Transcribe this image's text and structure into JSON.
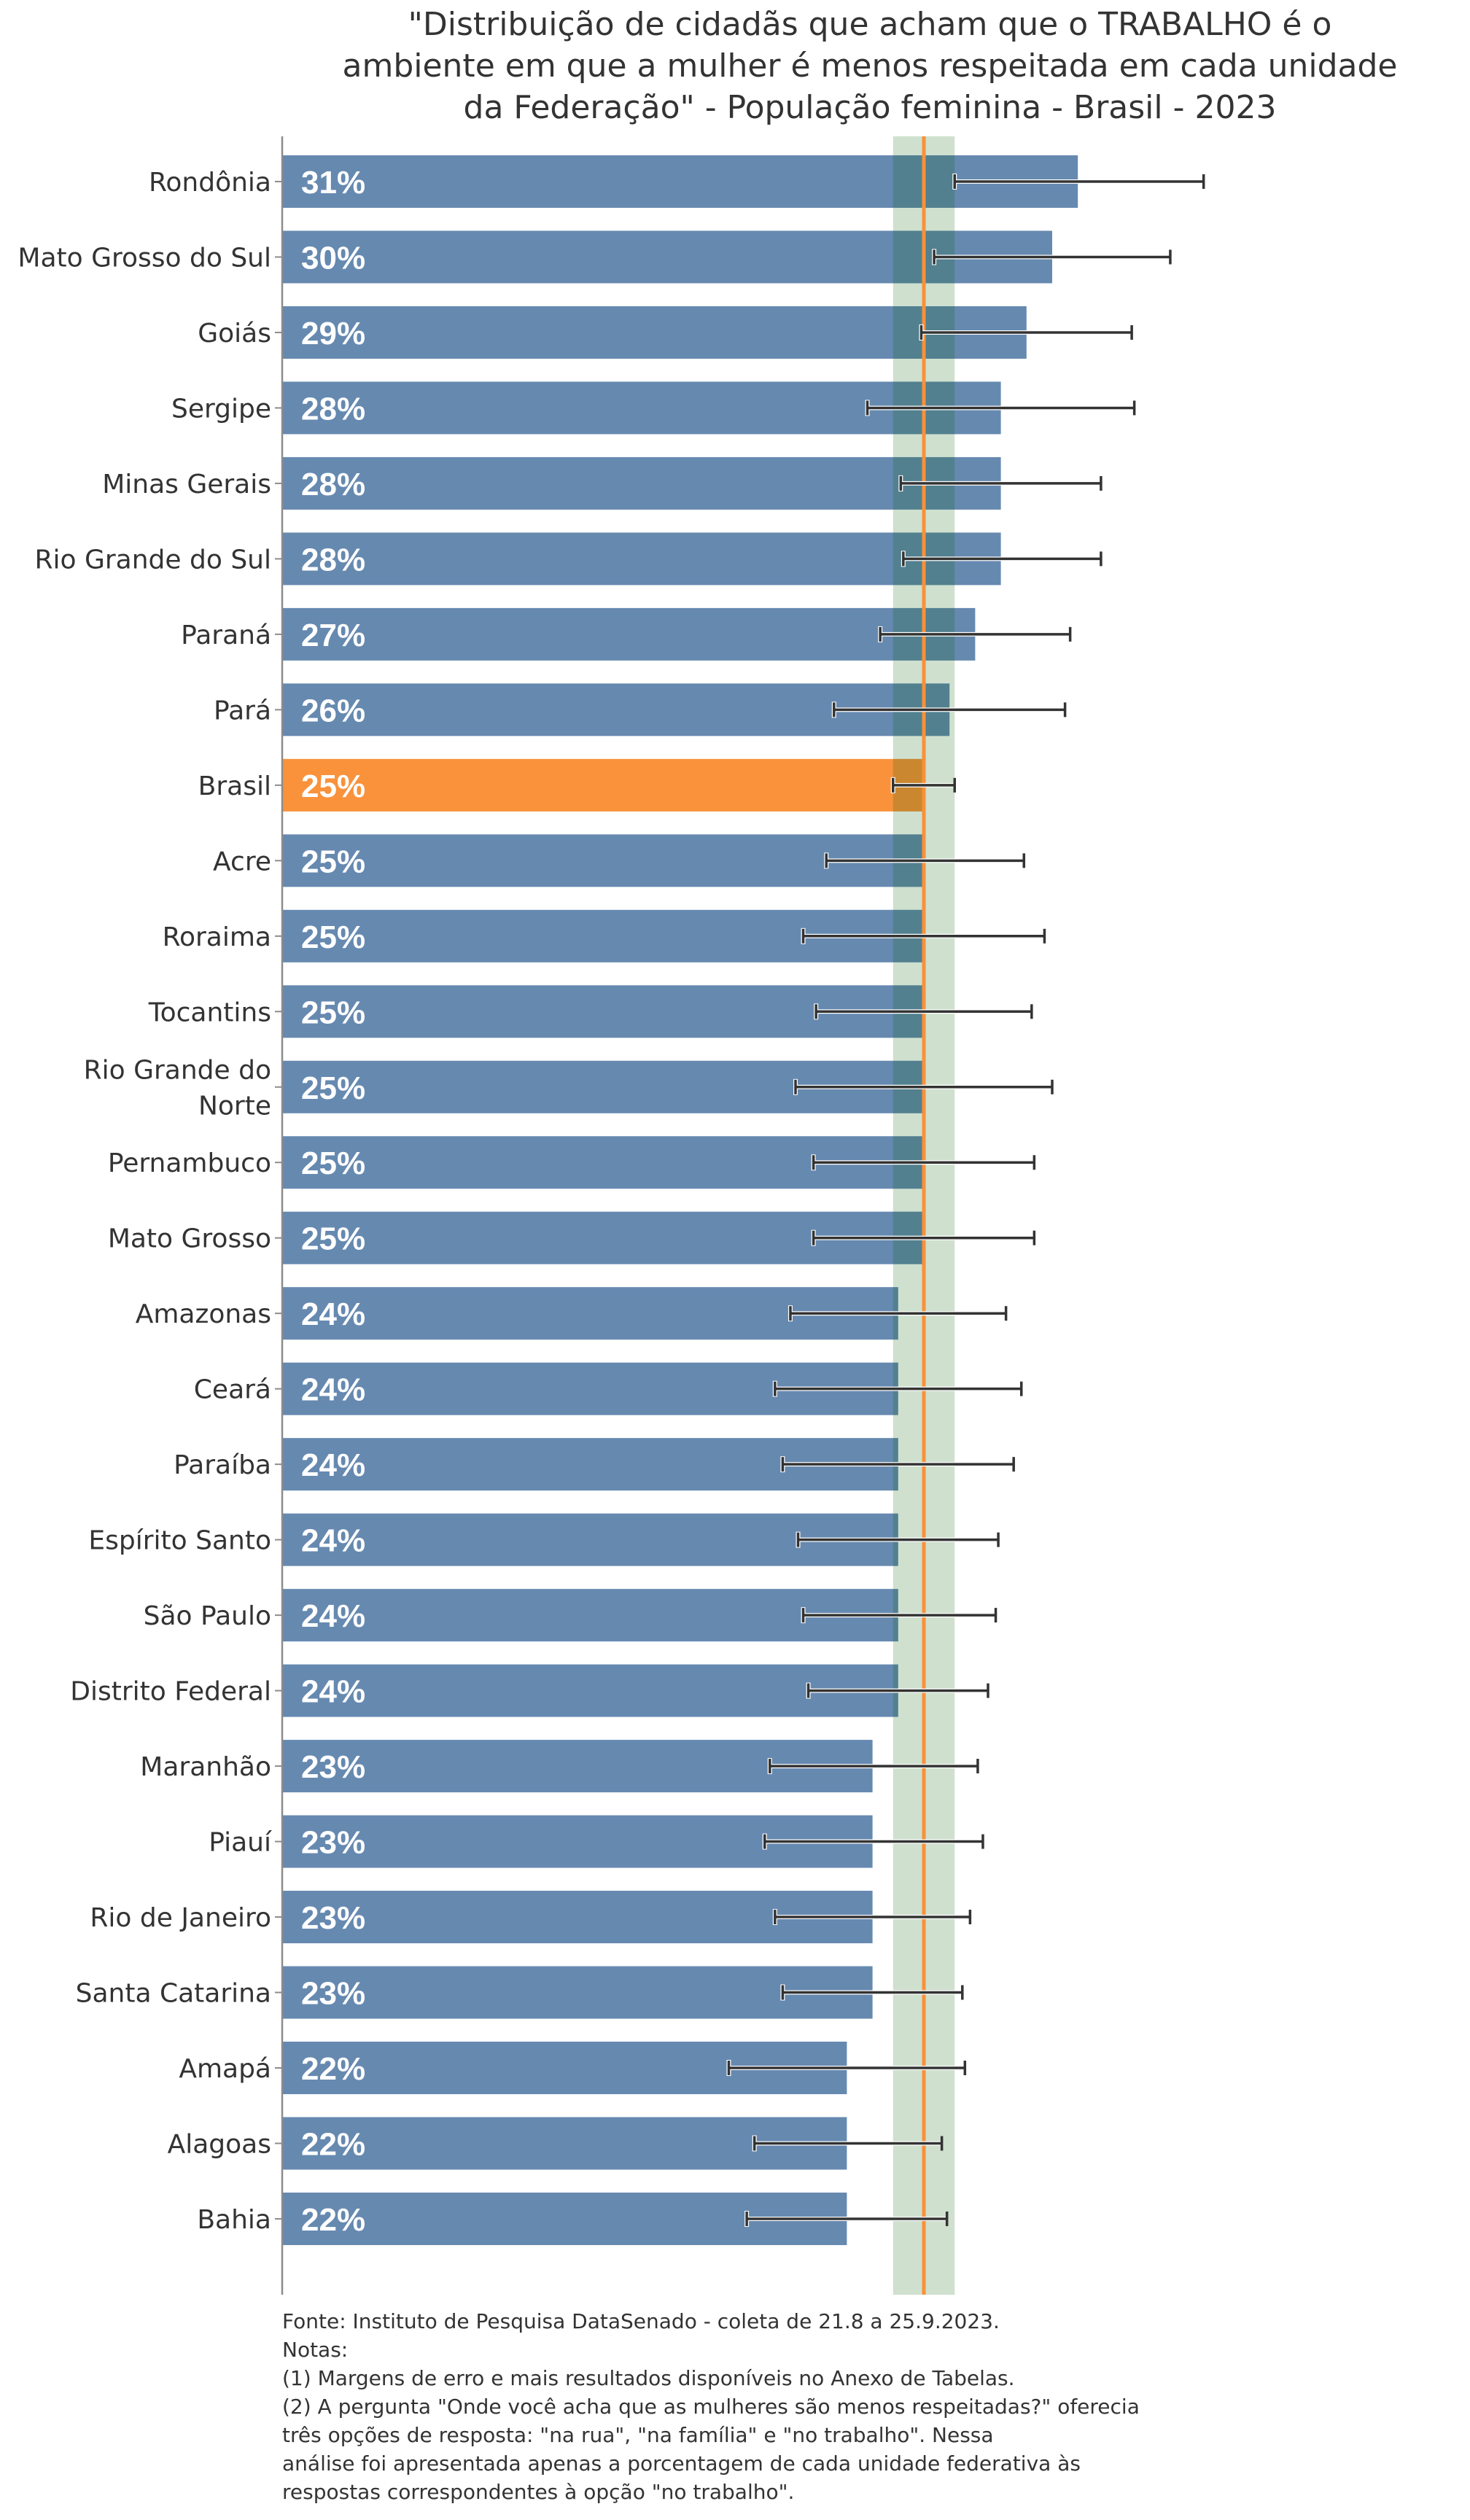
{
  "chart_data": {
    "type": "bar",
    "orientation": "horizontal",
    "title_lines": [
      "\"Distribuição de cidadãs que acham que o TRABALHO é o",
      "ambiente em que a mulher é menos respeitada em cada unidade",
      "da Federação\" - População feminina - Brasil - 2023"
    ],
    "xlabel": "",
    "ylabel": "",
    "xlim": [
      0,
      46
    ],
    "unit": "%",
    "grid": false,
    "legend": null,
    "reference": {
      "label": "Brasil",
      "value": 25,
      "band": [
        23.8,
        26.2
      ]
    },
    "colors": {
      "bar": "#6689B0",
      "highlight_bar": "#F9923B",
      "reference_line": "#F99139",
      "band": "rgba(0,89,0,0.19)",
      "errorbar": "#333333",
      "axis": "#8c8c8c",
      "text": "#333333"
    },
    "categories": [
      {
        "label": [
          "Rondônia"
        ],
        "value": 31,
        "text": "31%",
        "err": [
          26.2,
          35.9
        ],
        "highlight": false
      },
      {
        "label": [
          "Mato Grosso do Sul"
        ],
        "value": 30,
        "text": "30%",
        "err": [
          25.4,
          34.6
        ],
        "highlight": false
      },
      {
        "label": [
          "Goiás"
        ],
        "value": 29,
        "text": "29%",
        "err": [
          24.9,
          33.1
        ],
        "highlight": false
      },
      {
        "label": [
          "Sergipe"
        ],
        "value": 28,
        "text": "28%",
        "err": [
          22.8,
          33.2
        ],
        "highlight": false
      },
      {
        "label": [
          "Minas Gerais"
        ],
        "value": 28,
        "text": "28%",
        "err": [
          24.1,
          31.9
        ],
        "highlight": false
      },
      {
        "label": [
          "Rio Grande do Sul"
        ],
        "value": 28,
        "text": "28%",
        "err": [
          24.2,
          31.9
        ],
        "highlight": false
      },
      {
        "label": [
          "Paraná"
        ],
        "value": 27,
        "text": "27%",
        "err": [
          23.3,
          30.7
        ],
        "highlight": false
      },
      {
        "label": [
          "Pará"
        ],
        "value": 26,
        "text": "26%",
        "err": [
          21.5,
          30.5
        ],
        "highlight": false
      },
      {
        "label": [
          "Brasil"
        ],
        "value": 25,
        "text": "25%",
        "err": [
          23.8,
          26.2
        ],
        "highlight": true
      },
      {
        "label": [
          "Acre"
        ],
        "value": 25,
        "text": "25%",
        "err": [
          21.2,
          28.9
        ],
        "highlight": false
      },
      {
        "label": [
          "Roraima"
        ],
        "value": 25,
        "text": "25%",
        "err": [
          20.3,
          29.7
        ],
        "highlight": false
      },
      {
        "label": [
          "Tocantins"
        ],
        "value": 25,
        "text": "25%",
        "err": [
          20.8,
          29.2
        ],
        "highlight": false
      },
      {
        "label": [
          "Rio Grande do",
          "Norte"
        ],
        "value": 25,
        "text": "25%",
        "err": [
          20.0,
          30.0
        ],
        "highlight": false
      },
      {
        "label": [
          "Pernambuco"
        ],
        "value": 25,
        "text": "25%",
        "err": [
          20.7,
          29.3
        ],
        "highlight": false
      },
      {
        "label": [
          "Mato Grosso"
        ],
        "value": 25,
        "text": "25%",
        "err": [
          20.7,
          29.3
        ],
        "highlight": false
      },
      {
        "label": [
          "Amazonas"
        ],
        "value": 24,
        "text": "24%",
        "err": [
          19.8,
          28.2
        ],
        "highlight": false
      },
      {
        "label": [
          "Ceará"
        ],
        "value": 24,
        "text": "24%",
        "err": [
          19.2,
          28.8
        ],
        "highlight": false
      },
      {
        "label": [
          "Paraíba"
        ],
        "value": 24,
        "text": "24%",
        "err": [
          19.5,
          28.5
        ],
        "highlight": false
      },
      {
        "label": [
          "Espírito Santo"
        ],
        "value": 24,
        "text": "24%",
        "err": [
          20.1,
          27.9
        ],
        "highlight": false
      },
      {
        "label": [
          "São Paulo"
        ],
        "value": 24,
        "text": "24%",
        "err": [
          20.3,
          27.8
        ],
        "highlight": false
      },
      {
        "label": [
          "Distrito Federal"
        ],
        "value": 24,
        "text": "24%",
        "err": [
          20.5,
          27.5
        ],
        "highlight": false
      },
      {
        "label": [
          "Maranhão"
        ],
        "value": 23,
        "text": "23%",
        "err": [
          19.0,
          27.1
        ],
        "highlight": false
      },
      {
        "label": [
          "Piauí"
        ],
        "value": 23,
        "text": "23%",
        "err": [
          18.8,
          27.3
        ],
        "highlight": false
      },
      {
        "label": [
          "Rio de Janeiro"
        ],
        "value": 23,
        "text": "23%",
        "err": [
          19.2,
          26.8
        ],
        "highlight": false
      },
      {
        "label": [
          "Santa Catarina"
        ],
        "value": 23,
        "text": "23%",
        "err": [
          19.5,
          26.5
        ],
        "highlight": false
      },
      {
        "label": [
          "Amapá"
        ],
        "value": 22,
        "text": "22%",
        "err": [
          17.4,
          26.6
        ],
        "highlight": false
      },
      {
        "label": [
          "Alagoas"
        ],
        "value": 22,
        "text": "22%",
        "err": [
          18.4,
          25.7
        ],
        "highlight": false
      },
      {
        "label": [
          "Bahia"
        ],
        "value": 22,
        "text": "22%",
        "err": [
          18.1,
          25.9
        ],
        "highlight": false
      }
    ],
    "footer_lines": [
      "Fonte: Instituto de Pesquisa DataSenado - coleta de 21.8 a 25.9.2023.",
      "Notas:",
      "(1) Margens de erro e mais resultados disponíveis no Anexo de Tabelas.",
      "(2) A pergunta \"Onde você acha que as mulheres são menos respeitadas?\" oferecia",
      "três opções de resposta: \"na rua\", \"na família\" e \"no trabalho\". Nessa",
      "análise foi apresentada apenas a porcentagem de cada unidade federativa às",
      "respostas correspondentes à opção \"no trabalho\"."
    ]
  }
}
